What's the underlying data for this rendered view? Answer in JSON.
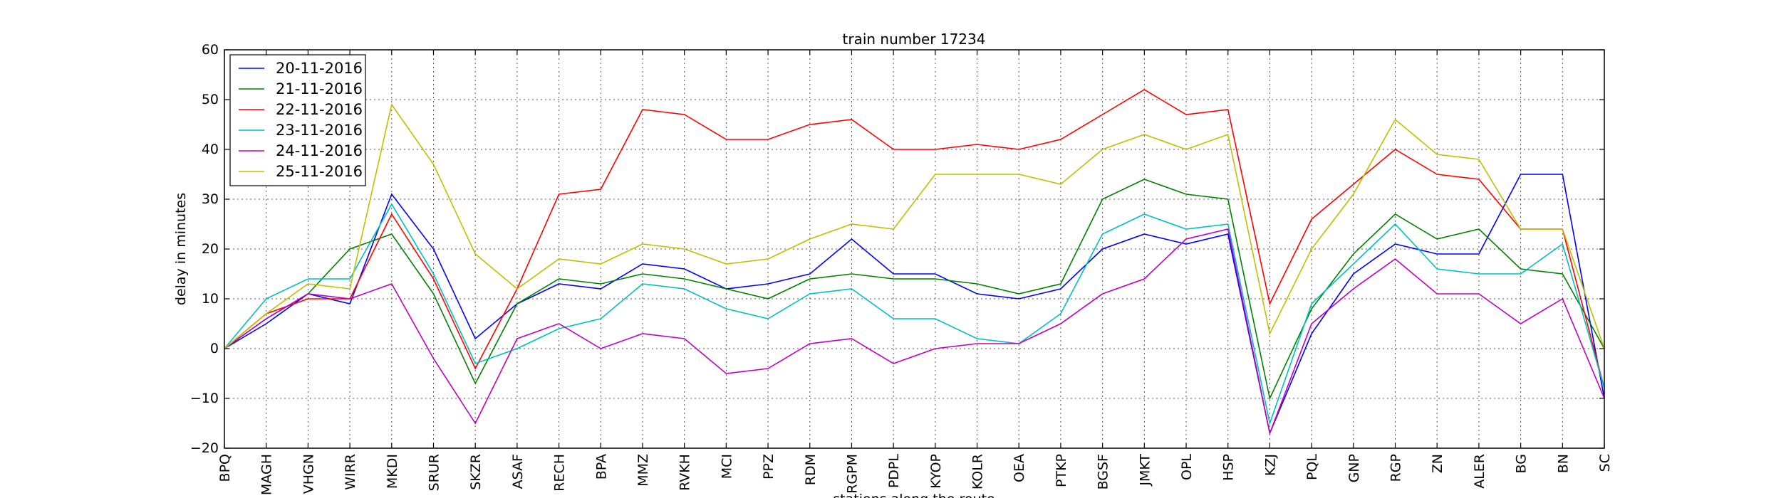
{
  "chart_data": {
    "type": "line",
    "title": "train number 17234",
    "xlabel": "stations along the route",
    "ylabel": "delay in minutes",
    "ylim": [
      -20,
      60
    ],
    "yticks": [
      -20,
      -10,
      0,
      10,
      20,
      30,
      40,
      50,
      60
    ],
    "grid": true,
    "legend_position": "top-left",
    "categories": [
      "BPQ",
      "MAGH",
      "VHGN",
      "WIRR",
      "MKDI",
      "SRUR",
      "SKZR",
      "ASAF",
      "RECH",
      "BPA",
      "MMZ",
      "RVKH",
      "MCI",
      "PPZ",
      "RDM",
      "RGPM",
      "PDPL",
      "KYOP",
      "KOLR",
      "OEA",
      "PTKP",
      "BGSF",
      "JMKT",
      "OPL",
      "HSP",
      "KZJ",
      "PQL",
      "GNP",
      "RGP",
      "ZN",
      "ALER",
      "BG",
      "BN",
      "SC"
    ],
    "series": [
      {
        "name": "20-11-2016",
        "color": "#0000ff",
        "values": [
          0,
          5,
          11,
          9,
          31,
          20,
          2,
          9,
          13,
          12,
          17,
          16,
          12,
          13,
          15,
          22,
          15,
          15,
          11,
          10,
          12,
          20,
          23,
          21,
          23,
          -17,
          3,
          15,
          21,
          19,
          19,
          35,
          35,
          -10
        ]
      },
      {
        "name": "21-11-2016",
        "color": "#008000",
        "values": [
          0,
          6,
          11,
          20,
          23,
          11,
          -7,
          9,
          14,
          13,
          15,
          14,
          12,
          10,
          14,
          15,
          14,
          14,
          13,
          11,
          13,
          30,
          34,
          31,
          30,
          -10,
          8,
          19,
          27,
          22,
          24,
          16,
          15,
          0
        ]
      },
      {
        "name": "22-11-2016",
        "color": "#ff0000",
        "values": [
          0,
          7,
          10,
          10,
          27,
          14,
          -4,
          12,
          31,
          32,
          48,
          47,
          42,
          42,
          45,
          46,
          40,
          40,
          41,
          40,
          42,
          47,
          52,
          47,
          48,
          9,
          26,
          33,
          40,
          35,
          34,
          24,
          24,
          -8
        ]
      },
      {
        "name": "23-11-2016",
        "color": "#00bfbf",
        "values": [
          0,
          10,
          14,
          14,
          29,
          15,
          -3,
          0,
          4,
          6,
          13,
          12,
          8,
          6,
          11,
          12,
          6,
          6,
          2,
          1,
          7,
          23,
          27,
          24,
          25,
          -15,
          9,
          17,
          25,
          16,
          15,
          15,
          21,
          -8
        ]
      },
      {
        "name": "24-11-2016",
        "color": "#bf00bf",
        "values": [
          0,
          6,
          11,
          10,
          13,
          -2,
          -15,
          2,
          5,
          0,
          3,
          2,
          -5,
          -4,
          1,
          2,
          -3,
          0,
          1,
          1,
          5,
          11,
          14,
          22,
          24,
          -17,
          5,
          12,
          18,
          11,
          11,
          5,
          10,
          -10
        ]
      },
      {
        "name": "25-11-2016",
        "color": "#bfbf00",
        "values": [
          0,
          7,
          13,
          12,
          49,
          37,
          19,
          12,
          18,
          17,
          21,
          20,
          17,
          18,
          22,
          25,
          24,
          35,
          35,
          35,
          33,
          40,
          43,
          40,
          43,
          3,
          20,
          31,
          46,
          39,
          38,
          24,
          24,
          0
        ]
      }
    ]
  }
}
